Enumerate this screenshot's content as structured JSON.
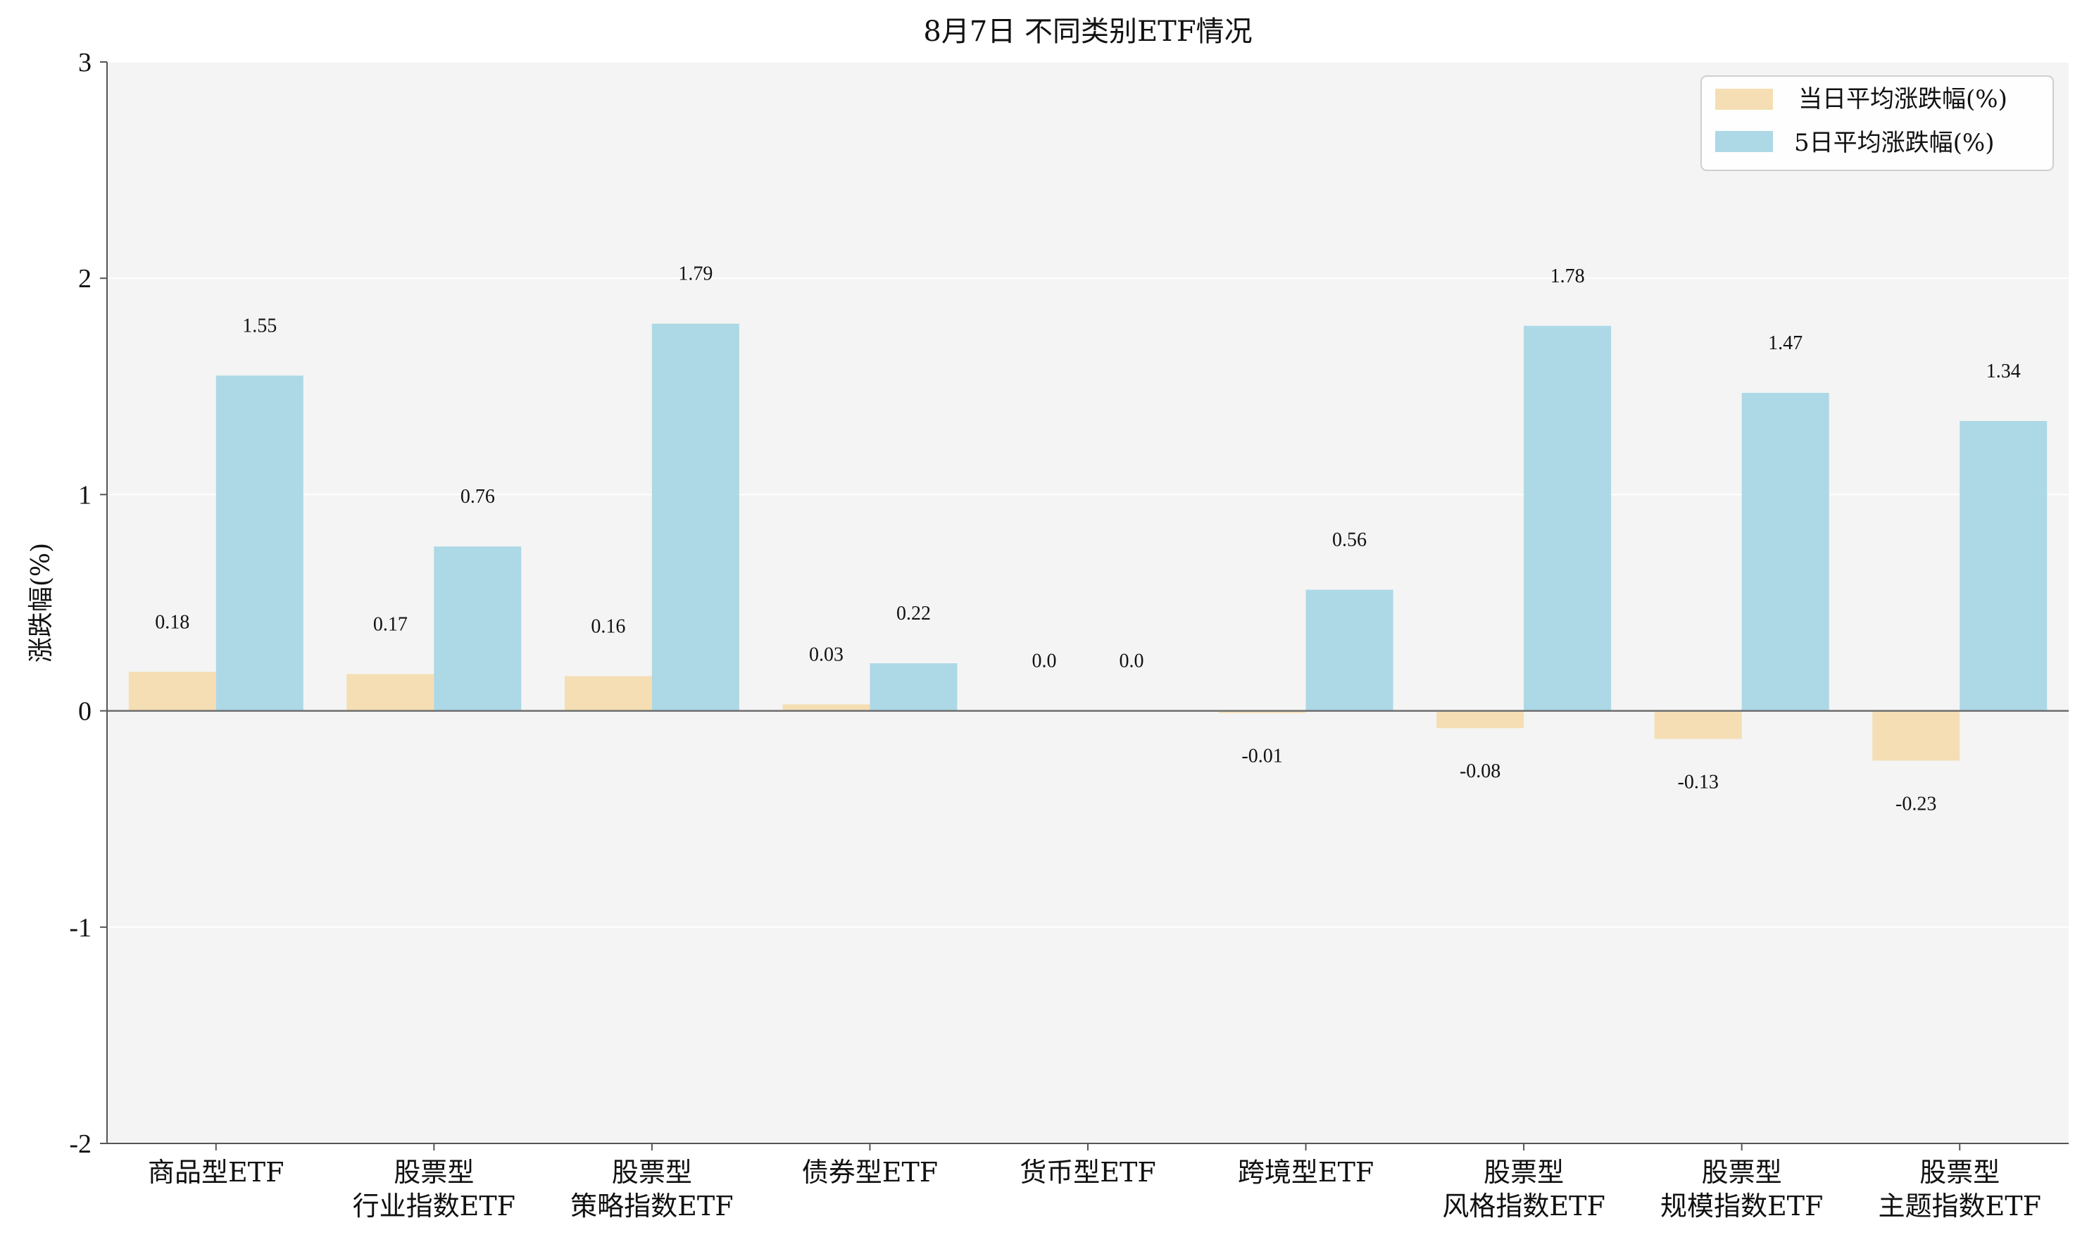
{
  "chart_data": {
    "type": "bar",
    "title": "8月7日 不同类别ETF情况",
    "xlabel": "",
    "ylabel": "涨跌幅(%)",
    "ylim": [
      -2,
      3
    ],
    "yticks": [
      3,
      2,
      1,
      0,
      -1,
      -2
    ],
    "grid": true,
    "legend_position": "top-right",
    "categories": [
      [
        "商品型ETF"
      ],
      [
        "股票型",
        "行业指数ETF"
      ],
      [
        "股票型",
        "策略指数ETF"
      ],
      [
        "债券型ETF"
      ],
      [
        "货币型ETF"
      ],
      [
        "跨境型ETF"
      ],
      [
        "股票型",
        "风格指数ETF"
      ],
      [
        "股票型",
        "规模指数ETF"
      ],
      [
        "股票型",
        "主题指数ETF"
      ]
    ],
    "series": [
      {
        "name": "当日平均涨跌幅(%)",
        "color": "#f5deb3",
        "values": [
          0.18,
          0.17,
          0.16,
          0.03,
          0.0,
          -0.01,
          -0.08,
          -0.13,
          -0.23
        ],
        "labels": [
          "0.18",
          "0.17",
          "0.16",
          "0.03",
          "0.0",
          "-0.01",
          "-0.08",
          "-0.13",
          "-0.23"
        ]
      },
      {
        "name": "5日平均涨跌幅(%)",
        "color": "#add8e6",
        "values": [
          1.55,
          0.76,
          1.79,
          0.22,
          0.0,
          0.56,
          1.78,
          1.47,
          1.34
        ],
        "labels": [
          "1.55",
          "0.76",
          "1.79",
          "0.22",
          "0.0",
          "0.56",
          "1.78",
          "1.47",
          "1.34"
        ]
      }
    ]
  }
}
